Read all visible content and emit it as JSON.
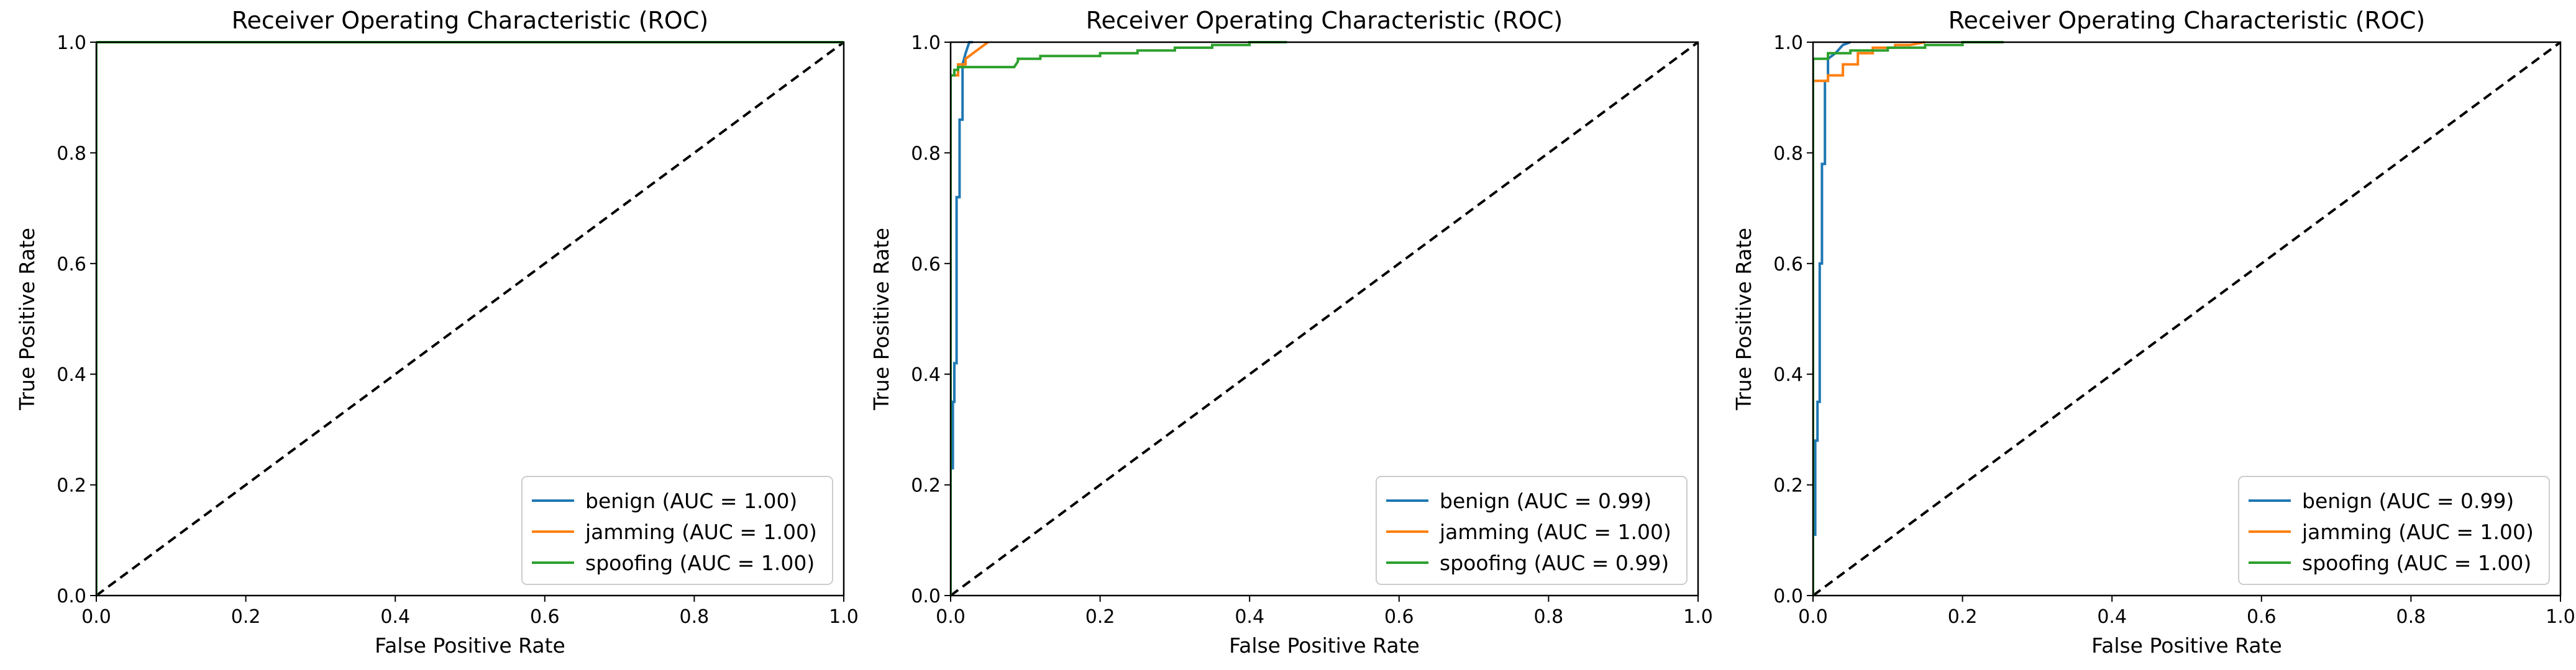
{
  "figure": {
    "background": "#ffffff"
  },
  "chart_data": [
    {
      "type": "line",
      "title": "Receiver Operating Characteristic (ROC)",
      "xlabel": "False Positive Rate",
      "ylabel": "True Positive Rate",
      "xlim": [
        0,
        1
      ],
      "ylim": [
        0,
        1
      ],
      "xticks": [
        "0.0",
        "0.2",
        "0.4",
        "0.6",
        "0.8",
        "1.0"
      ],
      "yticks": [
        "0.0",
        "0.2",
        "0.4",
        "0.6",
        "0.8",
        "1.0"
      ],
      "grid": false,
      "legend_position": "lower right",
      "diagonal": {
        "style": "dashed",
        "color": "#000000",
        "x": [
          0,
          1
        ],
        "y": [
          0,
          1
        ]
      },
      "series": [
        {
          "name": "benign (AUC = 1.00)",
          "color": "#1f77b4",
          "x": [
            0,
            0,
            1
          ],
          "y": [
            0,
            1,
            1
          ]
        },
        {
          "name": "jamming (AUC = 1.00)",
          "color": "#ff7f0e",
          "x": [
            0,
            0,
            1
          ],
          "y": [
            0,
            1,
            1
          ]
        },
        {
          "name": "spoofing (AUC = 1.00)",
          "color": "#2ca02c",
          "x": [
            0,
            0,
            1
          ],
          "y": [
            0,
            1,
            1
          ]
        }
      ]
    },
    {
      "type": "line",
      "title": "Receiver Operating Characteristic (ROC)",
      "xlabel": "False Positive Rate",
      "ylabel": "True Positive Rate",
      "xlim": [
        0,
        1
      ],
      "ylim": [
        0,
        1
      ],
      "xticks": [
        "0.0",
        "0.2",
        "0.4",
        "0.6",
        "0.8",
        "1.0"
      ],
      "yticks": [
        "0.0",
        "0.2",
        "0.4",
        "0.6",
        "0.8",
        "1.0"
      ],
      "grid": false,
      "legend_position": "lower right",
      "diagonal": {
        "style": "dashed",
        "color": "#000000",
        "x": [
          0,
          1
        ],
        "y": [
          0,
          1
        ]
      },
      "series": [
        {
          "name": "benign (AUC = 0.99)",
          "color": "#1f77b4",
          "x": [
            0,
            0,
            0.003,
            0.003,
            0.005,
            0.005,
            0.008,
            0.008,
            0.012,
            0.012,
            0.016,
            0.016,
            0.02,
            0.025,
            0.03
          ],
          "y": [
            0,
            0.23,
            0.23,
            0.35,
            0.35,
            0.42,
            0.42,
            0.72,
            0.72,
            0.86,
            0.86,
            0.96,
            0.98,
            1.0,
            1.0
          ]
        },
        {
          "name": "jamming (AUC = 1.00)",
          "color": "#ff7f0e",
          "x": [
            0,
            0,
            0.01,
            0.01,
            0.02,
            0.02,
            0.03,
            0.04,
            0.05
          ],
          "y": [
            0,
            0.94,
            0.94,
            0.96,
            0.96,
            0.97,
            0.98,
            0.99,
            1.0
          ]
        },
        {
          "name": "spoofing (AUC = 0.99)",
          "color": "#2ca02c",
          "x": [
            0,
            0,
            0.005,
            0.005,
            0.01,
            0.01,
            0.085,
            0.09,
            0.09,
            0.12,
            0.12,
            0.2,
            0.2,
            0.25,
            0.25,
            0.3,
            0.3,
            0.35,
            0.35,
            0.4,
            0.4,
            0.45
          ],
          "y": [
            0,
            0.94,
            0.94,
            0.95,
            0.95,
            0.955,
            0.955,
            0.965,
            0.97,
            0.97,
            0.975,
            0.975,
            0.98,
            0.98,
            0.985,
            0.985,
            0.99,
            0.99,
            0.995,
            0.995,
            1.0,
            1.0
          ]
        }
      ]
    },
    {
      "type": "line",
      "title": "Receiver Operating Characteristic (ROC)",
      "xlabel": "False Positive Rate",
      "ylabel": "True Positive Rate",
      "xlim": [
        0,
        1
      ],
      "ylim": [
        0,
        1
      ],
      "xticks": [
        "0.0",
        "0.2",
        "0.4",
        "0.6",
        "0.8",
        "1.0"
      ],
      "yticks": [
        "0.0",
        "0.2",
        "0.4",
        "0.6",
        "0.8",
        "1.0"
      ],
      "grid": false,
      "legend_position": "lower right",
      "diagonal": {
        "style": "dashed",
        "color": "#000000",
        "x": [
          0,
          1
        ],
        "y": [
          0,
          1
        ]
      },
      "series": [
        {
          "name": "benign (AUC = 0.99)",
          "color": "#1f77b4",
          "x": [
            0,
            0,
            0.003,
            0.003,
            0.006,
            0.006,
            0.009,
            0.009,
            0.012,
            0.012,
            0.016,
            0.016,
            0.02,
            0.02,
            0.03,
            0.04,
            0.05
          ],
          "y": [
            0,
            0.11,
            0.11,
            0.28,
            0.28,
            0.35,
            0.35,
            0.6,
            0.6,
            0.78,
            0.78,
            0.93,
            0.93,
            0.97,
            0.98,
            0.995,
            1.0
          ]
        },
        {
          "name": "jamming (AUC = 1.00)",
          "color": "#ff7f0e",
          "x": [
            0,
            0,
            0.02,
            0.02,
            0.04,
            0.04,
            0.06,
            0.06,
            0.08,
            0.08,
            0.11,
            0.11,
            0.13,
            0.15
          ],
          "y": [
            0,
            0.93,
            0.93,
            0.94,
            0.94,
            0.96,
            0.96,
            0.98,
            0.98,
            0.99,
            0.99,
            0.995,
            0.995,
            1.0
          ]
        },
        {
          "name": "spoofing (AUC = 1.00)",
          "color": "#2ca02c",
          "x": [
            0,
            0,
            0.02,
            0.02,
            0.05,
            0.05,
            0.1,
            0.1,
            0.15,
            0.15,
            0.2,
            0.2,
            0.255
          ],
          "y": [
            0,
            0.97,
            0.97,
            0.98,
            0.98,
            0.985,
            0.985,
            0.99,
            0.99,
            0.995,
            0.995,
            1.0,
            1.0
          ]
        }
      ]
    }
  ]
}
